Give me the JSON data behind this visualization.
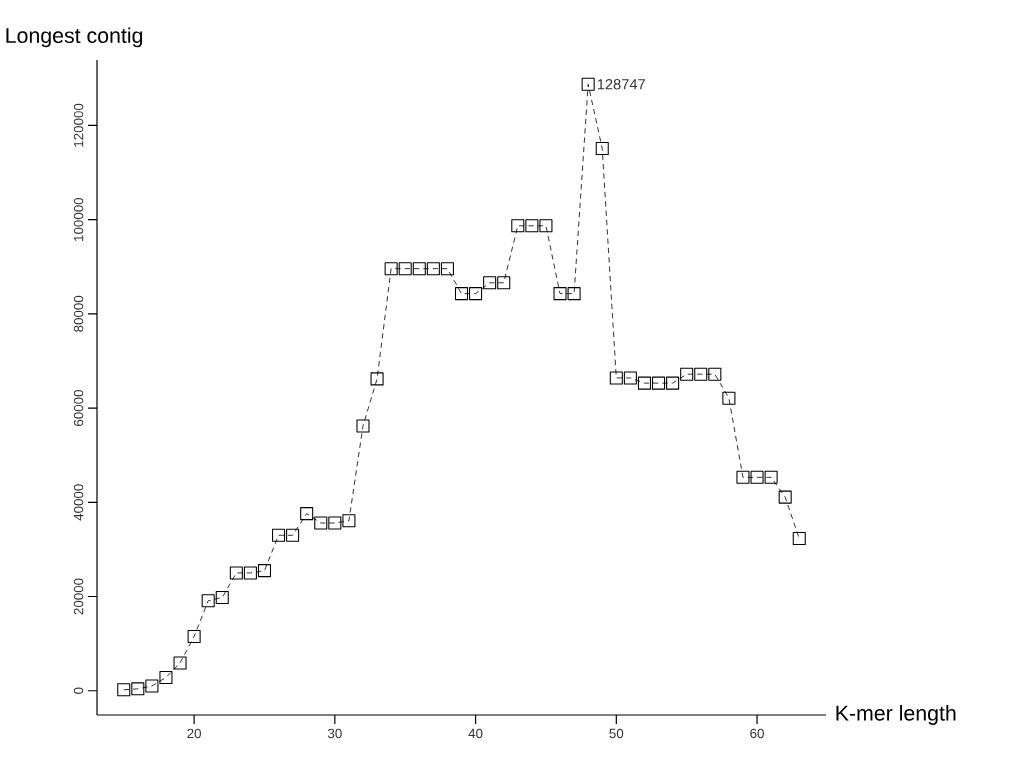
{
  "chart_data": {
    "type": "line",
    "xlabel": "K-mer length",
    "ylabel": "Longest contig",
    "x": [
      15,
      16,
      17,
      18,
      19,
      20,
      21,
      22,
      23,
      24,
      25,
      26,
      27,
      28,
      29,
      30,
      31,
      32,
      33,
      34,
      35,
      36,
      37,
      38,
      39,
      40,
      41,
      42,
      43,
      44,
      45,
      46,
      47,
      48,
      49,
      50,
      51,
      52,
      53,
      54,
      55,
      56,
      57,
      58,
      59,
      60,
      61,
      62,
      63
    ],
    "values": [
      200,
      400,
      1000,
      2800,
      5900,
      11500,
      19100,
      19800,
      25000,
      25000,
      25500,
      33000,
      33000,
      37600,
      35600,
      35600,
      36100,
      56200,
      66200,
      89600,
      89600,
      89600,
      89600,
      89600,
      84300,
      84300,
      86600,
      86600,
      98700,
      98700,
      98700,
      84300,
      84300,
      128747,
      115100,
      66400,
      66400,
      65300,
      65300,
      65300,
      67200,
      67200,
      67200,
      62100,
      45300,
      45300,
      45300,
      41100,
      32300
    ],
    "color": "#000000",
    "marker": "square",
    "line_style": "dashed",
    "xlim": [
      13.1,
      64.9
    ],
    "ylim": [
      -5150,
      133900
    ],
    "xticks": [
      20,
      30,
      40,
      50,
      60
    ],
    "yticks": [
      0,
      20000,
      40000,
      60000,
      80000,
      100000,
      120000
    ],
    "annotations": [
      {
        "text": "128747",
        "x": 48,
        "y": 128747
      }
    ]
  }
}
